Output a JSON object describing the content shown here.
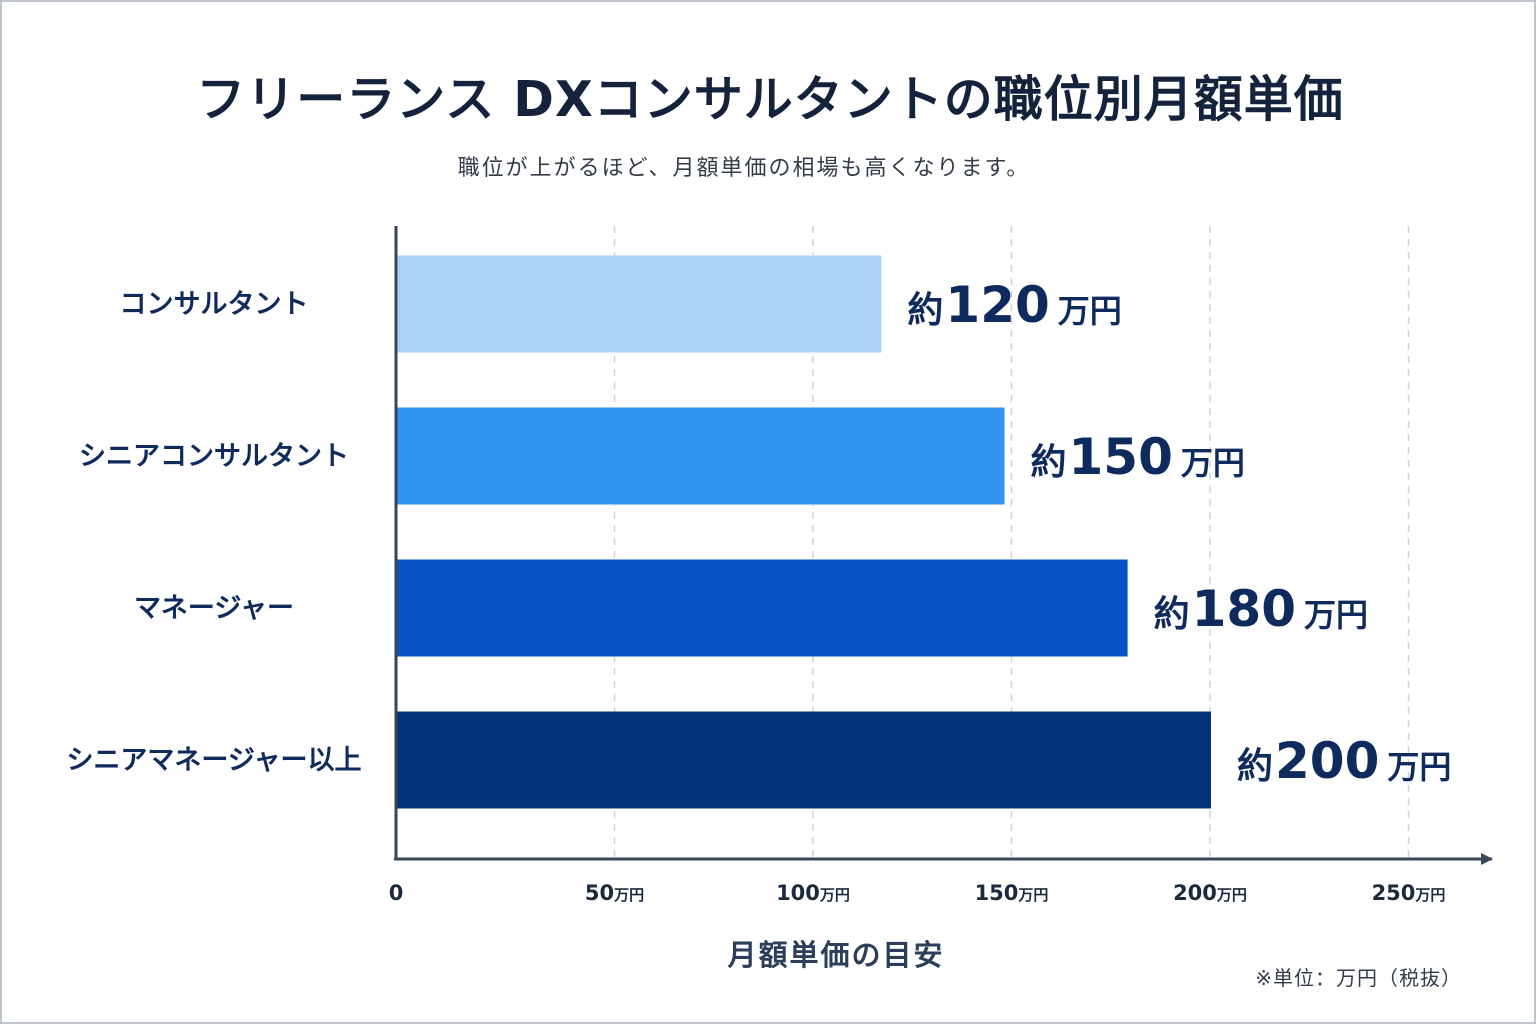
{
  "title": "フリーランス DXコンサルタントの職位別月額単価",
  "subtitle": "職位が上がるほど、月額単価の相場も高くなります。",
  "note": "※単位：万円（税抜）",
  "chart_data": {
    "type": "bar",
    "orientation": "horizontal",
    "title": "フリーランス DXコンサルタントの職位別月額単価",
    "xlabel": "月額単価の目安",
    "ylabel": "",
    "categories": [
      "コンサルタント",
      "シニアコンサルタント",
      "マネージャー",
      "シニアマネージャー以上"
    ],
    "values": [
      120,
      150,
      180,
      200
    ],
    "value_labels": [
      {
        "prefix": "約",
        "number": "120",
        "unit": "万円"
      },
      {
        "prefix": "約",
        "number": "150",
        "unit": "万円"
      },
      {
        "prefix": "約",
        "number": "180",
        "unit": "万円"
      },
      {
        "prefix": "約",
        "number": "200",
        "unit": "万円"
      }
    ],
    "colors": [
      "#acd3f6",
      "#3194ee",
      "#0654c3",
      "#033478"
    ],
    "xlim": [
      0,
      250
    ],
    "xticks": [
      {
        "value": 0,
        "number": "0",
        "unit": ""
      },
      {
        "value": 50,
        "number": "50",
        "unit": "万円"
      },
      {
        "value": 100,
        "number": "100",
        "unit": "万円"
      },
      {
        "value": 150,
        "number": "150",
        "unit": "万円"
      },
      {
        "value": 200,
        "number": "200",
        "unit": "万円"
      },
      {
        "value": 250,
        "number": "250",
        "unit": "万円"
      }
    ],
    "grid": "vertical dashed",
    "legend": "none"
  }
}
